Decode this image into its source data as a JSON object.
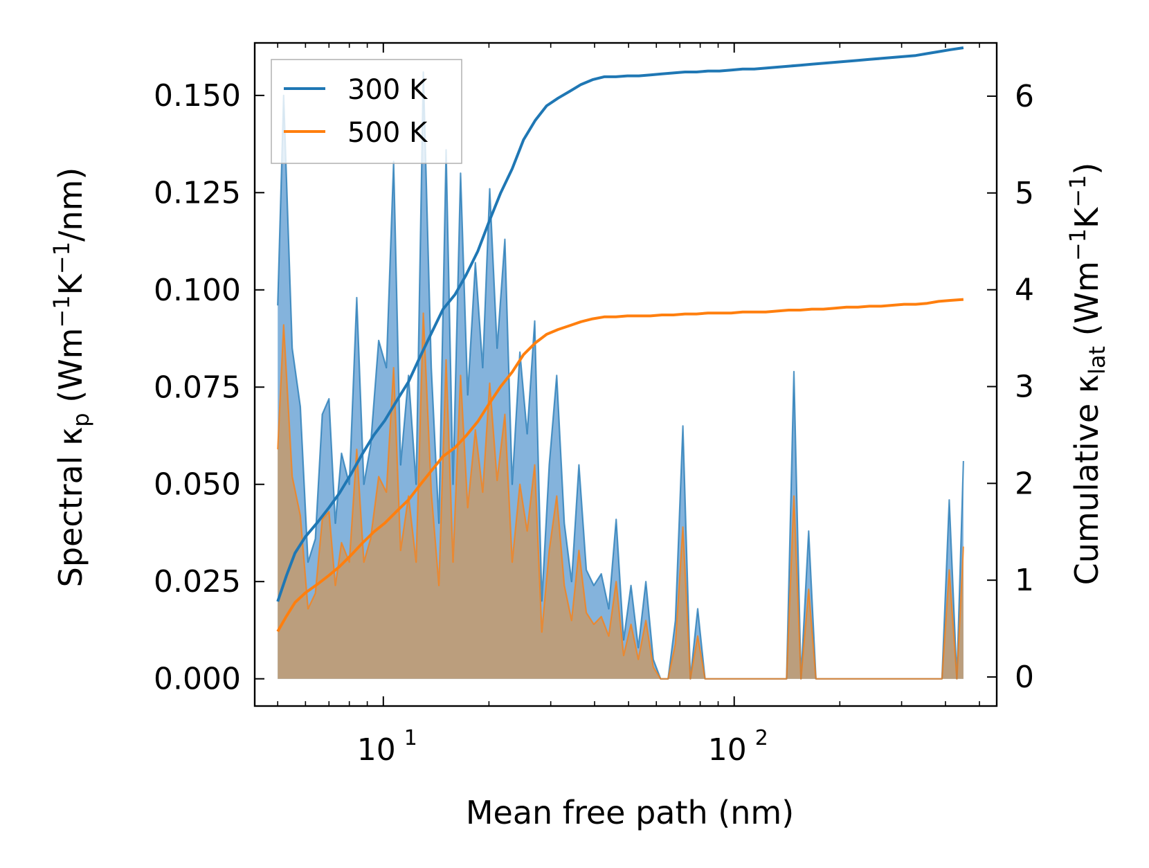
{
  "chart_data": {
    "type": "line",
    "x_scale": "log",
    "xlabel": "Mean free path (nm)",
    "ylabel_left": {
      "pre": "Spectral κ",
      "sub": "p",
      "post": " (Wm",
      "sup1": "−1",
      "mid": "K",
      "sup2": "−1",
      "end": "/nm)"
    },
    "ylabel_right": {
      "pre": "Cumulative κ",
      "sub": "lat",
      "post": " (Wm",
      "sup1": "−1",
      "mid": "K",
      "sup2": "−1",
      "end": ")"
    },
    "xlim": [
      4.3,
      560
    ],
    "ylim_left": [
      -0.007,
      0.1635
    ],
    "ylim_right": [
      -0.3,
      6.55
    ],
    "x_ticks": [
      {
        "value": 10,
        "base": "10",
        "exp": "1"
      },
      {
        "value": 100,
        "base": "10",
        "exp": "2"
      }
    ],
    "y_ticks_left": [
      {
        "value": 0,
        "label": "0.000"
      },
      {
        "value": 0.025,
        "label": "0.025"
      },
      {
        "value": 0.05,
        "label": "0.050"
      },
      {
        "value": 0.075,
        "label": "0.075"
      },
      {
        "value": 0.1,
        "label": "0.100"
      },
      {
        "value": 0.125,
        "label": "0.125"
      },
      {
        "value": 0.15,
        "label": "0.150"
      }
    ],
    "y_ticks_right": [
      {
        "value": 0,
        "label": "0"
      },
      {
        "value": 1,
        "label": "1"
      },
      {
        "value": 2,
        "label": "2"
      },
      {
        "value": 3,
        "label": "3"
      },
      {
        "value": 4,
        "label": "4"
      },
      {
        "value": 5,
        "label": "5"
      },
      {
        "value": 6,
        "label": "6"
      }
    ],
    "legend_position": "top-left",
    "series": [
      {
        "name": "300 K",
        "color": "#1f77b4",
        "fill_color": "#5b9ad0",
        "spectral": {
          "x": [
            5.0,
            5.2,
            5.5,
            5.8,
            6.1,
            6.4,
            6.7,
            7.0,
            7.3,
            7.6,
            8.0,
            8.4,
            8.8,
            9.2,
            9.7,
            10.2,
            10.7,
            11.2,
            11.8,
            12.4,
            13.0,
            13.7,
            14.4,
            15.1,
            15.8,
            16.6,
            17.4,
            18.3,
            19.2,
            20.1,
            21.1,
            22.2,
            23.3,
            24.5,
            25.7,
            27.0,
            28.3,
            29.7,
            31.2,
            32.8,
            34.4,
            36.1,
            37.9,
            39.8,
            41.8,
            43.9,
            46.1,
            48.4,
            50.8,
            53.3,
            56.0,
            58.8,
            61.7,
            64.8,
            68.0,
            71.4,
            75.0,
            78.7,
            82.6,
            86.7,
            91.0,
            95.5,
            100,
            105,
            110,
            116,
            122,
            128,
            134,
            141,
            148,
            155,
            163,
            171,
            180,
            189,
            198,
            208,
            218,
            229,
            240,
            252,
            265,
            278,
            292,
            306,
            321,
            337,
            354,
            372,
            391,
            410,
            431,
            450
          ],
          "y": [
            0.096,
            0.15,
            0.085,
            0.07,
            0.03,
            0.036,
            0.068,
            0.072,
            0.04,
            0.058,
            0.05,
            0.098,
            0.05,
            0.06,
            0.087,
            0.08,
            0.133,
            0.055,
            0.078,
            0.05,
            0.156,
            0.08,
            0.04,
            0.136,
            0.05,
            0.13,
            0.073,
            0.107,
            0.08,
            0.126,
            0.085,
            0.113,
            0.05,
            0.084,
            0.063,
            0.092,
            0.02,
            0.055,
            0.078,
            0.04,
            0.025,
            0.055,
            0.028,
            0.024,
            0.027,
            0.018,
            0.041,
            0.01,
            0.024,
            0.008,
            0.025,
            0.005,
            0.0,
            0.0,
            0.015,
            0.065,
            0.0,
            0.018,
            0.0,
            0.0,
            0.0,
            0.0,
            0.0,
            0.0,
            0.0,
            0.0,
            0.0,
            0.0,
            0.0,
            0.0,
            0.079,
            0.0,
            0.038,
            0.0,
            0.0,
            0.0,
            0.0,
            0.0,
            0.0,
            0.0,
            0.0,
            0.0,
            0.0,
            0.0,
            0.0,
            0.0,
            0.0,
            0.0,
            0.0,
            0.0,
            0.0,
            0.046,
            0.0,
            0.056
          ]
        },
        "cumulative": {
          "x": [
            5.0,
            5.3,
            5.6,
            6.0,
            6.5,
            7.0,
            7.5,
            8.1,
            8.7,
            9.4,
            10.1,
            10.9,
            11.8,
            12.7,
            13.7,
            14.8,
            16.0,
            17.2,
            18.6,
            20.0,
            21.6,
            23.3,
            25.1,
            27.1,
            29.2,
            31.5,
            34.0,
            36.6,
            39.5,
            42.6,
            46.0,
            49.6,
            53.5,
            57.7,
            62.2,
            67.1,
            72.4,
            78.1,
            84.2,
            90.8,
            98.0,
            105.7,
            114.0,
            123.0,
            132.6,
            143.1,
            154.3,
            166.4,
            179.5,
            193.6,
            208.9,
            225.3,
            243.0,
            262.1,
            282.7,
            305.0,
            329.0,
            354.8,
            382.8,
            412.9,
            450.0
          ],
          "y": [
            0.78,
            1.05,
            1.28,
            1.45,
            1.6,
            1.75,
            1.9,
            2.1,
            2.3,
            2.5,
            2.65,
            2.85,
            3.05,
            3.3,
            3.55,
            3.8,
            3.95,
            4.15,
            4.4,
            4.7,
            5.0,
            5.25,
            5.55,
            5.75,
            5.9,
            5.98,
            6.05,
            6.12,
            6.17,
            6.2,
            6.2,
            6.21,
            6.21,
            6.22,
            6.23,
            6.24,
            6.25,
            6.25,
            6.26,
            6.26,
            6.27,
            6.28,
            6.28,
            6.29,
            6.3,
            6.31,
            6.32,
            6.33,
            6.34,
            6.35,
            6.36,
            6.37,
            6.38,
            6.39,
            6.4,
            6.41,
            6.42,
            6.44,
            6.46,
            6.48,
            6.5
          ]
        }
      },
      {
        "name": "500 K",
        "color": "#ff7f0e",
        "fill_color": "#c49a6c",
        "spectral": {
          "x": [
            5.0,
            5.2,
            5.5,
            5.8,
            6.1,
            6.4,
            6.7,
            7.0,
            7.3,
            7.6,
            8.0,
            8.4,
            8.8,
            9.2,
            9.7,
            10.2,
            10.7,
            11.2,
            11.8,
            12.4,
            13.0,
            13.7,
            14.4,
            15.1,
            15.8,
            16.6,
            17.4,
            18.3,
            19.2,
            20.1,
            21.1,
            22.2,
            23.3,
            24.5,
            25.7,
            27.0,
            28.3,
            29.7,
            31.2,
            32.8,
            34.4,
            36.1,
            37.9,
            39.8,
            41.8,
            43.9,
            46.1,
            48.4,
            50.8,
            53.3,
            56.0,
            58.8,
            61.7,
            64.8,
            68.0,
            71.4,
            75.0,
            78.7,
            82.6,
            86.7,
            91.0,
            95.5,
            100,
            105,
            110,
            116,
            122,
            128,
            134,
            141,
            148,
            155,
            163,
            171,
            180,
            189,
            198,
            208,
            218,
            229,
            240,
            252,
            265,
            278,
            292,
            306,
            321,
            337,
            354,
            372,
            391,
            410,
            431,
            450
          ],
          "y": [
            0.059,
            0.091,
            0.052,
            0.042,
            0.018,
            0.022,
            0.041,
            0.043,
            0.024,
            0.035,
            0.03,
            0.059,
            0.03,
            0.036,
            0.052,
            0.048,
            0.08,
            0.033,
            0.047,
            0.03,
            0.094,
            0.048,
            0.024,
            0.082,
            0.03,
            0.078,
            0.044,
            0.064,
            0.048,
            0.076,
            0.051,
            0.068,
            0.03,
            0.05,
            0.038,
            0.055,
            0.012,
            0.033,
            0.047,
            0.024,
            0.015,
            0.033,
            0.017,
            0.014,
            0.016,
            0.011,
            0.025,
            0.006,
            0.014,
            0.005,
            0.015,
            0.003,
            0.0,
            0.0,
            0.009,
            0.039,
            0.0,
            0.011,
            0.0,
            0.0,
            0.0,
            0.0,
            0.0,
            0.0,
            0.0,
            0.0,
            0.0,
            0.0,
            0.0,
            0.0,
            0.047,
            0.0,
            0.023,
            0.0,
            0.0,
            0.0,
            0.0,
            0.0,
            0.0,
            0.0,
            0.0,
            0.0,
            0.0,
            0.0,
            0.0,
            0.0,
            0.0,
            0.0,
            0.0,
            0.0,
            0.0,
            0.028,
            0.0,
            0.034
          ]
        },
        "cumulative": {
          "x": [
            5.0,
            5.3,
            5.6,
            6.0,
            6.5,
            7.0,
            7.5,
            8.1,
            8.7,
            9.4,
            10.1,
            10.9,
            11.8,
            12.7,
            13.7,
            14.8,
            16.0,
            17.2,
            18.6,
            20.0,
            21.6,
            23.3,
            25.1,
            27.1,
            29.2,
            31.5,
            34.0,
            36.6,
            39.5,
            42.6,
            46.0,
            49.6,
            53.5,
            57.7,
            62.2,
            67.1,
            72.4,
            78.1,
            84.2,
            90.8,
            98.0,
            105.7,
            114.0,
            123.0,
            132.6,
            143.1,
            154.3,
            166.4,
            179.5,
            193.6,
            208.9,
            225.3,
            243.0,
            262.1,
            282.7,
            305.0,
            329.0,
            354.8,
            382.8,
            412.9,
            450.0
          ],
          "y": [
            0.47,
            0.63,
            0.77,
            0.87,
            0.96,
            1.05,
            1.14,
            1.26,
            1.38,
            1.5,
            1.59,
            1.71,
            1.83,
            1.98,
            2.13,
            2.28,
            2.37,
            2.49,
            2.64,
            2.82,
            3.0,
            3.15,
            3.33,
            3.45,
            3.54,
            3.59,
            3.63,
            3.67,
            3.7,
            3.72,
            3.72,
            3.73,
            3.73,
            3.73,
            3.74,
            3.74,
            3.75,
            3.75,
            3.76,
            3.76,
            3.76,
            3.77,
            3.77,
            3.77,
            3.78,
            3.79,
            3.79,
            3.8,
            3.8,
            3.81,
            3.82,
            3.82,
            3.83,
            3.83,
            3.84,
            3.85,
            3.85,
            3.86,
            3.88,
            3.89,
            3.9
          ]
        }
      }
    ]
  }
}
